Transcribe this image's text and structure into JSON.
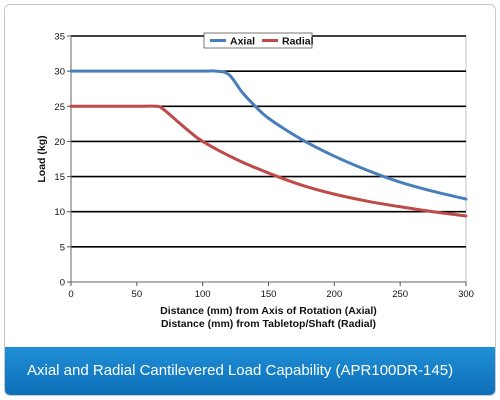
{
  "caption": "Axial and Radial Cantilevered Load Capability (APR100DR-145)",
  "chart_data": {
    "type": "line",
    "title": "",
    "xlabel": [
      "Distance (mm) from Axis of Rotation (Axial)",
      "Distance (mm) from Tabletop/Shaft (Radial)"
    ],
    "ylabel": "Load (kg)",
    "xlim": [
      0,
      300
    ],
    "ylim": [
      0,
      35
    ],
    "xticks": [
      "0",
      "50",
      "100",
      "150",
      "200",
      "250",
      "300"
    ],
    "yticks": [
      "0",
      "5",
      "10",
      "15",
      "20",
      "25",
      "30",
      "35"
    ],
    "grid": "horizontal",
    "legend_position": "top",
    "series": [
      {
        "name": "Axial",
        "color": "#4a7ebb",
        "x": [
          0,
          50,
          100,
          110,
          120,
          130,
          140,
          150,
          175,
          200,
          225,
          250,
          275,
          300
        ],
        "y": [
          30,
          30,
          30,
          30,
          29.5,
          27,
          25,
          23.3,
          20.3,
          17.9,
          15.9,
          14.2,
          12.9,
          11.8
        ]
      },
      {
        "name": "Radial",
        "color": "#be4b48",
        "x": [
          0,
          50,
          65,
          70,
          80,
          90,
          100,
          125,
          150,
          175,
          200,
          225,
          250,
          275,
          300
        ],
        "y": [
          25,
          25,
          25,
          24.6,
          23,
          21.4,
          20,
          17.5,
          15.5,
          13.8,
          12.5,
          11.5,
          10.7,
          10,
          9.4
        ]
      }
    ]
  }
}
